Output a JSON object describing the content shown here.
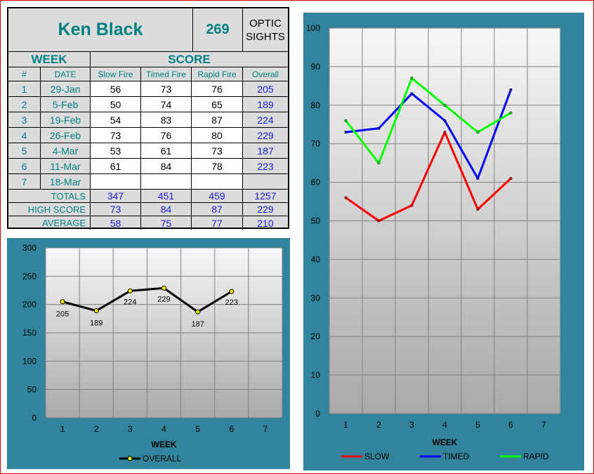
{
  "header": {
    "name": "Ken Black",
    "total": "269",
    "category_line1": "OPTIC",
    "category_line2": "SIGHTS"
  },
  "table": {
    "week_label": "WEEK",
    "score_label": "SCORE",
    "columns": [
      "#",
      "DATE",
      "Slow Fire",
      "Timed Fire",
      "Rapid Fire",
      "Overall"
    ],
    "rows": [
      {
        "num": "1",
        "date": "29-Jan",
        "slow": "56",
        "timed": "73",
        "rapid": "76",
        "overall": "205"
      },
      {
        "num": "2",
        "date": "5-Feb",
        "slow": "50",
        "timed": "74",
        "rapid": "65",
        "overall": "189"
      },
      {
        "num": "3",
        "date": "19-Feb",
        "slow": "54",
        "timed": "83",
        "rapid": "87",
        "overall": "224"
      },
      {
        "num": "4",
        "date": "26-Feb",
        "slow": "73",
        "timed": "76",
        "rapid": "80",
        "overall": "229"
      },
      {
        "num": "5",
        "date": "4-Mar",
        "slow": "53",
        "timed": "61",
        "rapid": "73",
        "overall": "187"
      },
      {
        "num": "6",
        "date": "11-Mar",
        "slow": "61",
        "timed": "84",
        "rapid": "78",
        "overall": "223"
      },
      {
        "num": "7",
        "date": "18-Mar",
        "slow": "",
        "timed": "",
        "rapid": "",
        "overall": ""
      }
    ],
    "summary": [
      {
        "label": "TOTALS",
        "slow": "347",
        "timed": "451",
        "rapid": "459",
        "overall": "1257"
      },
      {
        "label": "HIGH SCORE",
        "slow": "73",
        "timed": "84",
        "rapid": "87",
        "overall": "229"
      },
      {
        "label": "AVERAGE",
        "slow": "58",
        "timed": "75",
        "rapid": "77",
        "overall": "210"
      }
    ]
  },
  "chart_data": [
    {
      "type": "line",
      "x": [
        1,
        2,
        3,
        4,
        5,
        6,
        7
      ],
      "xlabel": "WEEK",
      "ylabel": "",
      "ylim": [
        0,
        300
      ],
      "yticks": [
        0,
        50,
        100,
        150,
        200,
        250,
        300
      ],
      "grid": true,
      "legend": "bottom",
      "series": [
        {
          "name": "OVERALL",
          "color": "#000000",
          "marker_color": "#ffff00",
          "x": [
            1,
            2,
            3,
            4,
            5,
            6
          ],
          "values": [
            205,
            189,
            224,
            229,
            187,
            223
          ]
        }
      ],
      "data_labels": [
        "205",
        "189",
        "224",
        "229",
        "187",
        "223"
      ]
    },
    {
      "type": "line",
      "x": [
        1,
        2,
        3,
        4,
        5,
        6,
        7
      ],
      "xlabel": "WEEK",
      "ylabel": "",
      "ylim": [
        0,
        100
      ],
      "yticks": [
        0,
        10,
        20,
        30,
        40,
        50,
        60,
        70,
        80,
        90,
        100
      ],
      "grid": true,
      "legend": "bottom",
      "series": [
        {
          "name": "SLOW",
          "color": "#ff0000",
          "x": [
            1,
            2,
            3,
            4,
            5,
            6
          ],
          "values": [
            56,
            50,
            54,
            73,
            53,
            61
          ]
        },
        {
          "name": "TIMED",
          "color": "#0000ff",
          "x": [
            1,
            2,
            3,
            4,
            5,
            6
          ],
          "values": [
            73,
            74,
            83,
            76,
            61,
            84
          ]
        },
        {
          "name": "RAPID",
          "color": "#00ff00",
          "x": [
            1,
            2,
            3,
            4,
            5,
            6
          ],
          "values": [
            76,
            65,
            87,
            80,
            73,
            78
          ]
        }
      ]
    }
  ]
}
